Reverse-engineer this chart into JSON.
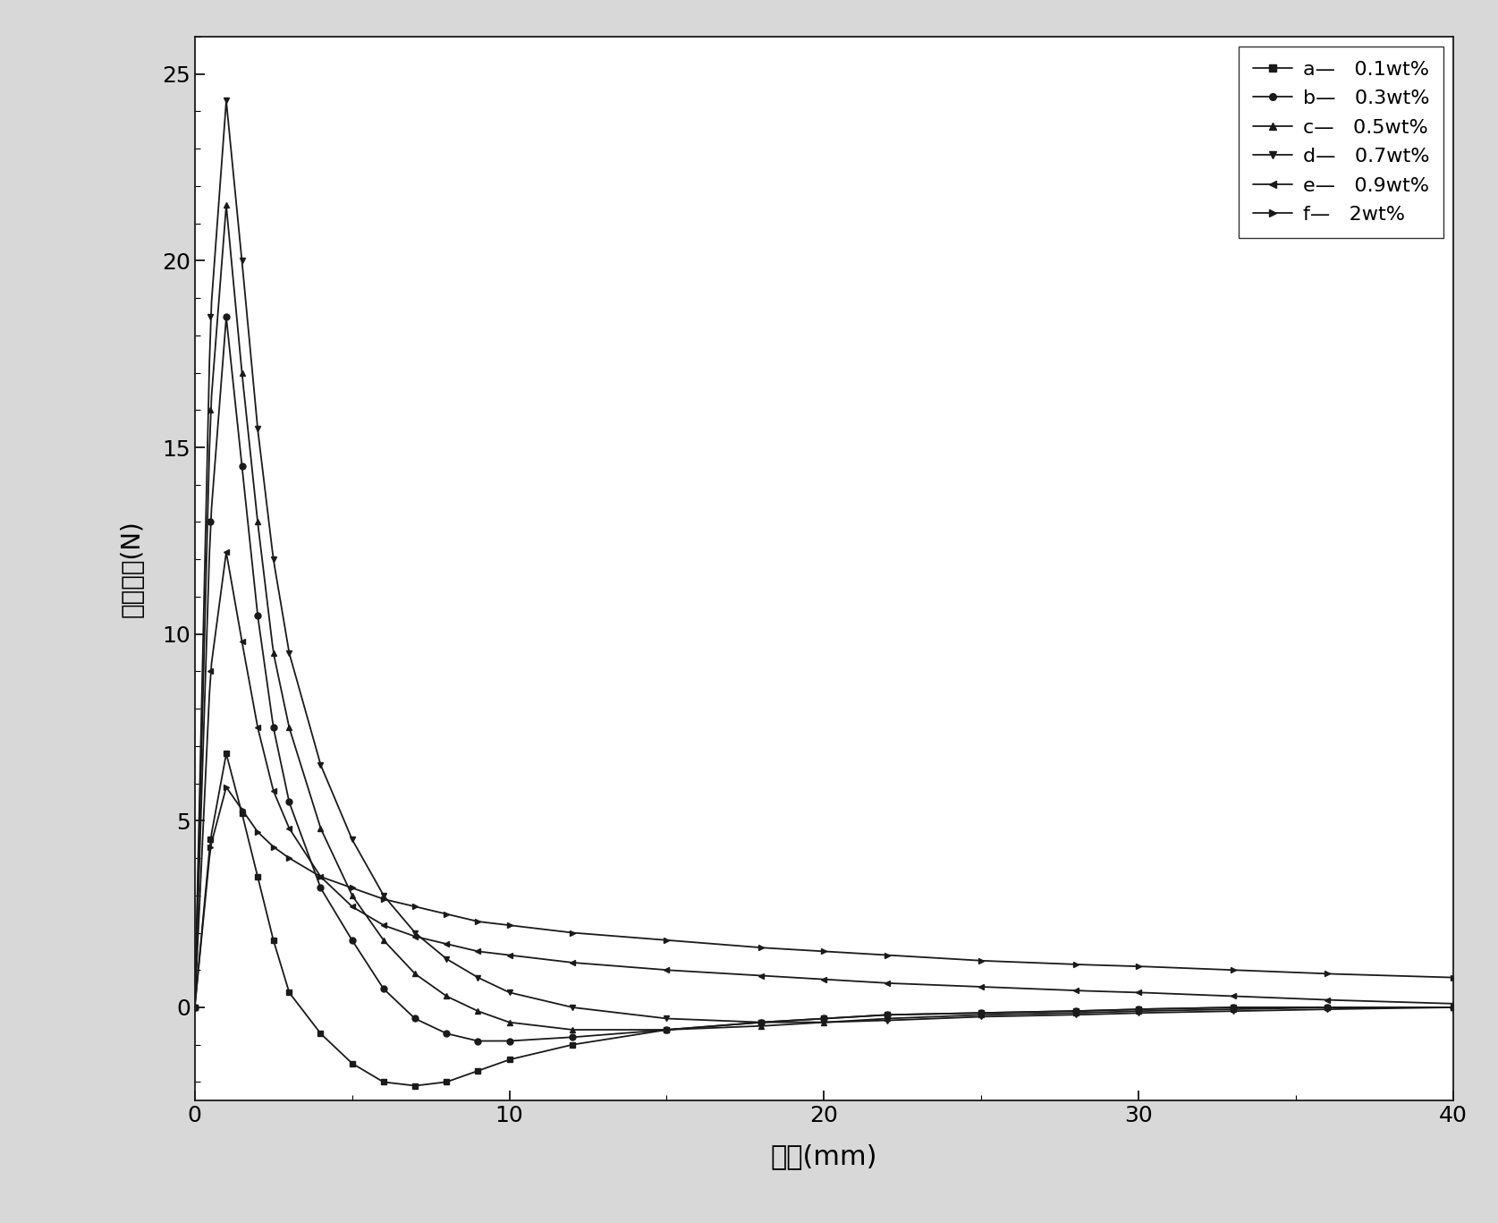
{
  "series": [
    {
      "name": "a",
      "wt": "0.1wt%",
      "marker": "s",
      "x_data": [
        0,
        0.5,
        1.0,
        1.5,
        2.0,
        2.5,
        3.0,
        4.0,
        5.0,
        6.0,
        7.0,
        8.0,
        9.0,
        10.0,
        12.0,
        15.0,
        18.0,
        20.0,
        22.0,
        25.0,
        28.0,
        30.0,
        33.0,
        36.0,
        40.0
      ],
      "y_data": [
        0.0,
        4.5,
        6.8,
        5.2,
        3.5,
        1.8,
        0.4,
        -0.7,
        -1.5,
        -2.0,
        -2.1,
        -2.0,
        -1.7,
        -1.4,
        -1.0,
        -0.6,
        -0.4,
        -0.3,
        -0.2,
        -0.15,
        -0.1,
        -0.05,
        0.0,
        0.0,
        0.0
      ]
    },
    {
      "name": "b",
      "wt": "0.3wt%",
      "marker": "o",
      "x_data": [
        0,
        0.5,
        1.0,
        1.5,
        2.0,
        2.5,
        3.0,
        4.0,
        5.0,
        6.0,
        7.0,
        8.0,
        9.0,
        10.0,
        12.0,
        15.0,
        18.0,
        20.0,
        22.0,
        25.0,
        28.0,
        30.0,
        33.0,
        36.0,
        40.0
      ],
      "y_data": [
        0.0,
        13.0,
        18.5,
        14.5,
        10.5,
        7.5,
        5.5,
        3.2,
        1.8,
        0.5,
        -0.3,
        -0.7,
        -0.9,
        -0.9,
        -0.8,
        -0.6,
        -0.4,
        -0.3,
        -0.2,
        -0.15,
        -0.1,
        -0.05,
        0.0,
        0.0,
        0.0
      ]
    },
    {
      "name": "c",
      "wt": "0.5wt%",
      "marker": "^",
      "x_data": [
        0,
        0.5,
        1.0,
        1.5,
        2.0,
        2.5,
        3.0,
        4.0,
        5.0,
        6.0,
        7.0,
        8.0,
        9.0,
        10.0,
        12.0,
        15.0,
        18.0,
        20.0,
        22.0,
        25.0,
        28.0,
        30.0,
        33.0,
        36.0,
        40.0
      ],
      "y_data": [
        0.0,
        16.0,
        21.5,
        17.0,
        13.0,
        9.5,
        7.5,
        4.8,
        3.0,
        1.8,
        0.9,
        0.3,
        -0.1,
        -0.4,
        -0.6,
        -0.6,
        -0.5,
        -0.4,
        -0.3,
        -0.2,
        -0.15,
        -0.1,
        -0.05,
        0.0,
        0.0
      ]
    },
    {
      "name": "d",
      "wt": "0.7wt%",
      "marker": "v",
      "x_data": [
        0,
        0.5,
        1.0,
        1.5,
        2.0,
        2.5,
        3.0,
        4.0,
        5.0,
        6.0,
        7.0,
        8.0,
        9.0,
        10.0,
        12.0,
        15.0,
        18.0,
        20.0,
        22.0,
        25.0,
        28.0,
        30.0,
        33.0,
        36.0,
        40.0
      ],
      "y_data": [
        0.0,
        18.5,
        24.3,
        20.0,
        15.5,
        12.0,
        9.5,
        6.5,
        4.5,
        3.0,
        2.0,
        1.3,
        0.8,
        0.4,
        0.0,
        -0.3,
        -0.4,
        -0.4,
        -0.35,
        -0.25,
        -0.2,
        -0.15,
        -0.1,
        -0.05,
        0.0
      ]
    },
    {
      "name": "e",
      "wt": "0.9wt%",
      "marker": "<",
      "x_data": [
        0,
        0.5,
        1.0,
        1.5,
        2.0,
        2.5,
        3.0,
        4.0,
        5.0,
        6.0,
        7.0,
        8.0,
        9.0,
        10.0,
        12.0,
        15.0,
        18.0,
        20.0,
        22.0,
        25.0,
        28.0,
        30.0,
        33.0,
        36.0,
        40.0
      ],
      "y_data": [
        0.0,
        9.0,
        12.2,
        9.8,
        7.5,
        5.8,
        4.8,
        3.5,
        2.7,
        2.2,
        1.9,
        1.7,
        1.5,
        1.4,
        1.2,
        1.0,
        0.85,
        0.75,
        0.65,
        0.55,
        0.45,
        0.4,
        0.3,
        0.2,
        0.1
      ]
    },
    {
      "name": "f",
      "wt": "2wt%",
      "marker": ">",
      "x_data": [
        0,
        0.5,
        1.0,
        1.5,
        2.0,
        2.5,
        3.0,
        4.0,
        5.0,
        6.0,
        7.0,
        8.0,
        9.0,
        10.0,
        12.0,
        15.0,
        18.0,
        20.0,
        22.0,
        25.0,
        28.0,
        30.0,
        33.0,
        36.0,
        40.0
      ],
      "y_data": [
        0.0,
        4.3,
        5.9,
        5.3,
        4.7,
        4.3,
        4.0,
        3.5,
        3.2,
        2.9,
        2.7,
        2.5,
        2.3,
        2.2,
        2.0,
        1.8,
        1.6,
        1.5,
        1.4,
        1.25,
        1.15,
        1.1,
        1.0,
        0.9,
        0.8
      ]
    }
  ],
  "xlabel": "距离(mm)",
  "ylabel": "磁悬浮力(N)",
  "xlim": [
    0,
    40
  ],
  "ylim": [
    -2.5,
    26
  ],
  "yticks": [
    0,
    5,
    10,
    15,
    20,
    25
  ],
  "xticks": [
    0,
    10,
    20,
    30,
    40
  ],
  "color": "#1a1a1a",
  "fig_facecolor": "#d8d8d8",
  "plot_facecolor": "#ffffff",
  "legend_items": [
    [
      "a",
      "s",
      "0.1wt%"
    ],
    [
      "b",
      "o",
      "0.3wt%"
    ],
    [
      "c",
      "^",
      "0.5wt%"
    ],
    [
      "d",
      "v",
      "0.7wt%"
    ],
    [
      "e",
      "<",
      "0.9wt%"
    ],
    [
      "f",
      ">",
      "2wt%"
    ]
  ]
}
